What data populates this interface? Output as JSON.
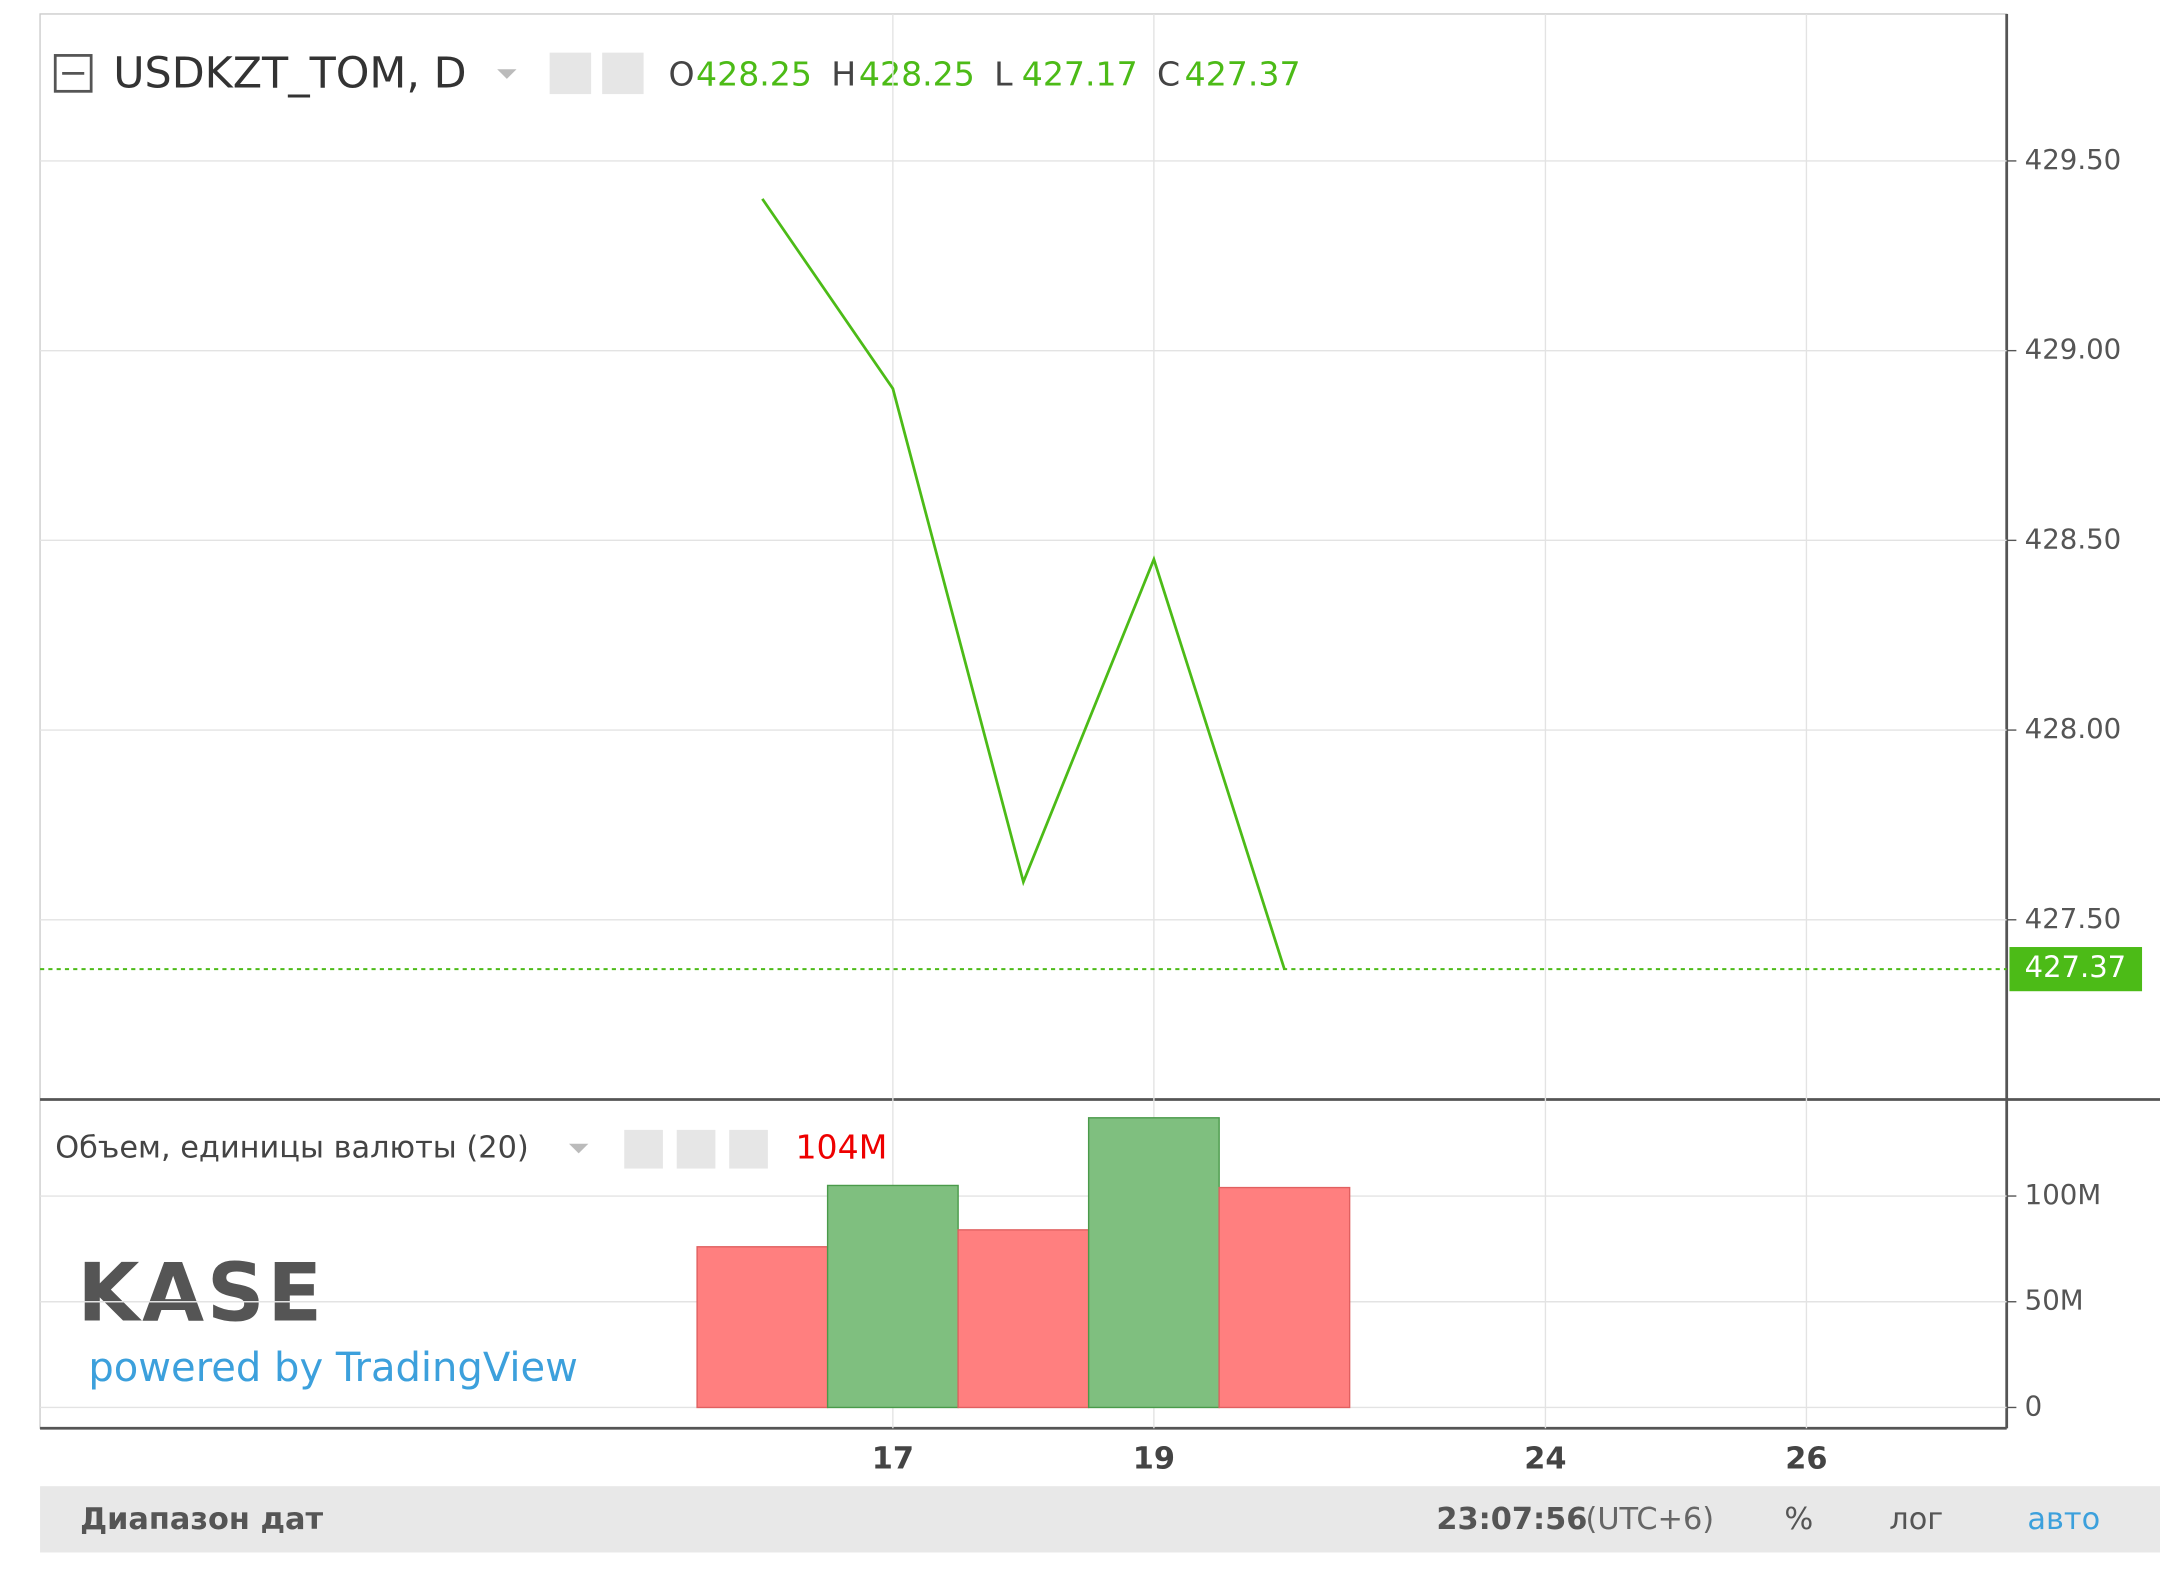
{
  "header": {
    "symbol": "USDKZT_TOM, D",
    "ohlc": [
      {
        "label": "O",
        "value": 428.25
      },
      {
        "label": "H",
        "value": 428.25
      },
      {
        "label": "L",
        "value": 427.17
      },
      {
        "label": "C",
        "value": 427.37
      }
    ]
  },
  "logo": {
    "name": "KASE",
    "tagline": "powered by TradingView"
  },
  "chart_data": [
    {
      "type": "line",
      "categories": [
        null,
        "17",
        null,
        "19",
        null,
        null,
        "24",
        null,
        "26"
      ],
      "values": [
        429.4,
        428.9,
        427.6,
        428.45,
        427.37,
        null,
        null,
        null,
        null
      ],
      "color": "#4cbb17",
      "ylim": [
        427.03,
        429.88
      ],
      "yticks": [
        {
          "value": 427.5,
          "label": "427.50"
        },
        {
          "value": 428,
          "label": "428.00"
        },
        {
          "value": 428.5,
          "label": "428.50"
        },
        {
          "value": 429,
          "label": "429.00"
        },
        {
          "value": 429.5,
          "label": "429.50"
        }
      ],
      "grid": true
    },
    {
      "type": "bar",
      "title": "Объем, единицы валюты (20)",
      "last_value_label": "104M",
      "categories": [
        null,
        "17",
        null,
        "19",
        null,
        null,
        "24",
        null,
        "26"
      ],
      "values": [
        76000000,
        105000000,
        84000000,
        137000000,
        104000000,
        null,
        null,
        null,
        null
      ],
      "colors": [
        "#ff7f7f",
        "#7fbf7f",
        "#ff7f7f",
        "#7fbf7f",
        "#ff7f7f",
        null,
        null,
        null,
        null
      ],
      "ylim": [
        -8500000,
        145000000
      ],
      "yticks": [
        0,
        {
          "value": 50000000,
          "label": "50M"
        },
        {
          "value": 100000000,
          "label": "100M"
        }
      ],
      "grid": true
    }
  ],
  "footer": {
    "date_range": "Диапазон дат",
    "time": "23:07:56",
    "timezone": "(UTC+6)",
    "percent": "%",
    "log": "лог",
    "auto": "авто"
  }
}
